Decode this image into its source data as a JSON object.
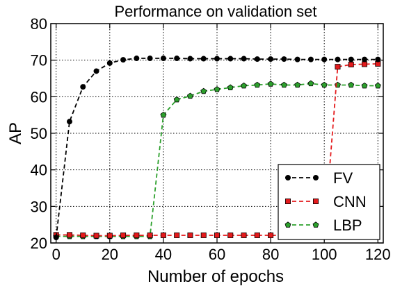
{
  "chart_data": {
    "type": "line",
    "title": "Performance on validation set",
    "xlabel": "Number of epochs",
    "ylabel": "AP",
    "xlim": [
      -2,
      122
    ],
    "ylim": [
      20,
      80
    ],
    "xticks": [
      0,
      20,
      40,
      60,
      80,
      100,
      120
    ],
    "yticks": [
      20,
      30,
      40,
      50,
      60,
      70,
      80
    ],
    "grid": true,
    "legend_position": "lower-right",
    "series": [
      {
        "name": "FV",
        "color": "#000000",
        "marker": "circle",
        "line_style": "dashed",
        "x": [
          0,
          5,
          10,
          15,
          20,
          25,
          30,
          35,
          40,
          45,
          50,
          55,
          60,
          65,
          70,
          75,
          80,
          85,
          90,
          95,
          100,
          105,
          110,
          115,
          120
        ],
        "y": [
          21.5,
          53.2,
          62.7,
          67.0,
          69.2,
          70.1,
          70.5,
          70.5,
          70.5,
          70.5,
          70.4,
          70.4,
          70.4,
          70.4,
          70.4,
          70.3,
          70.3,
          70.3,
          70.2,
          70.2,
          70.2,
          70.2,
          70.2,
          70.2,
          70.2
        ]
      },
      {
        "name": "CNN",
        "color": "#e41a1c",
        "marker": "square",
        "line_style": "dashed",
        "x": [
          0,
          5,
          10,
          15,
          20,
          25,
          30,
          35,
          40,
          45,
          50,
          55,
          60,
          65,
          70,
          75,
          80,
          85,
          90,
          95,
          100,
          105,
          110,
          115,
          120
        ],
        "y": [
          22.2,
          22.2,
          22.1,
          22.0,
          22.0,
          22.1,
          22.1,
          22.1,
          22.1,
          22.1,
          22.1,
          22.1,
          22.1,
          22.1,
          22.1,
          22.1,
          22.1,
          22.1,
          22.1,
          22.0,
          22.0,
          68.2,
          68.8,
          68.9,
          69.0
        ]
      },
      {
        "name": "LBP",
        "color": "#2ca02c",
        "marker": "pentagon",
        "line_style": "dashed",
        "x": [
          0,
          5,
          10,
          15,
          20,
          25,
          30,
          35,
          40,
          45,
          50,
          55,
          60,
          65,
          70,
          75,
          80,
          85,
          90,
          95,
          100,
          105,
          110,
          115,
          120
        ],
        "y": [
          21.8,
          21.8,
          21.8,
          21.8,
          21.8,
          21.8,
          21.8,
          21.8,
          55.0,
          59.2,
          60.2,
          61.5,
          62.0,
          62.5,
          63.0,
          63.2,
          63.5,
          63.2,
          63.2,
          63.6,
          63.2,
          63.2,
          63.2,
          63.0,
          63.0
        ]
      }
    ]
  }
}
